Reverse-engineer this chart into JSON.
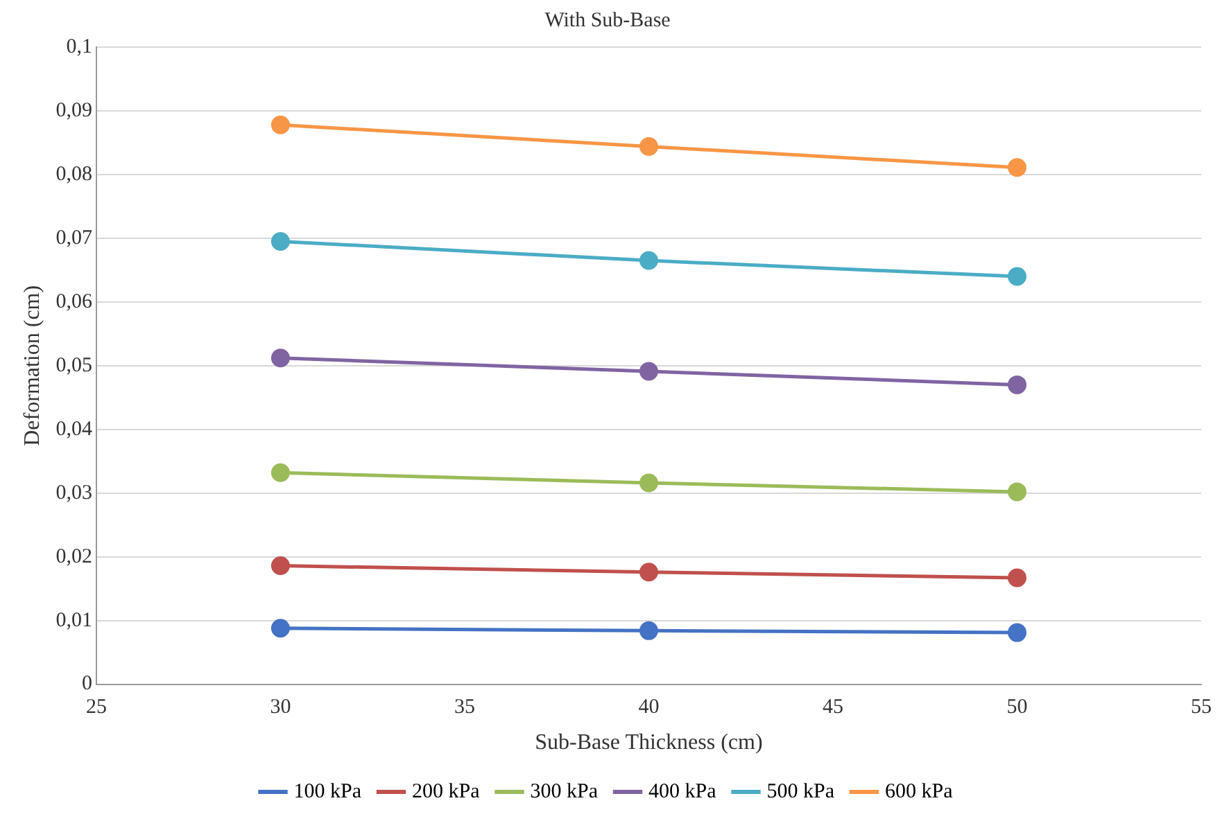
{
  "chart_data": {
    "type": "line",
    "title": "With Sub-Base",
    "xlabel": "Sub-Base Thickness (cm)",
    "ylabel": "Deformation (cm)",
    "x": [
      30,
      40,
      50
    ],
    "series": [
      {
        "name": "100 kPa",
        "color": "#4472c4",
        "values": [
          0.0088,
          0.0084,
          0.0081
        ]
      },
      {
        "name": "200 kPa",
        "color": "#c0504d",
        "values": [
          0.0186,
          0.0176,
          0.0167
        ]
      },
      {
        "name": "300 kPa",
        "color": "#9bbb59",
        "values": [
          0.0332,
          0.0316,
          0.0302
        ]
      },
      {
        "name": "400 kPa",
        "color": "#8064a2",
        "values": [
          0.0512,
          0.0491,
          0.047
        ]
      },
      {
        "name": "500 kPa",
        "color": "#4bacc6",
        "values": [
          0.0695,
          0.0665,
          0.064
        ]
      },
      {
        "name": "600 kPa",
        "color": "#f79646",
        "values": [
          0.0878,
          0.0844,
          0.0811
        ]
      }
    ],
    "xlim": [
      25,
      55
    ],
    "xticks": [
      25,
      30,
      35,
      40,
      45,
      50,
      55
    ],
    "ylim": [
      0,
      0.1
    ],
    "yticks": [
      0,
      {
        "value": 0.01,
        "label": "0,01"
      },
      {
        "value": 0.02,
        "label": "0,02"
      },
      {
        "value": 0.03,
        "label": "0,03"
      },
      {
        "value": 0.04,
        "label": "0,04"
      },
      {
        "value": 0.05,
        "label": "0,05"
      },
      {
        "value": 0.06,
        "label": "0,06"
      },
      {
        "value": 0.07,
        "label": "0,07"
      },
      {
        "value": 0.08,
        "label": "0,08"
      },
      {
        "value": 0.09,
        "label": "0,09"
      },
      {
        "value": 0.1,
        "label": "0,1"
      }
    ],
    "grid": "y",
    "legend": "bottom",
    "marker": "circle",
    "line_style": "solid"
  }
}
